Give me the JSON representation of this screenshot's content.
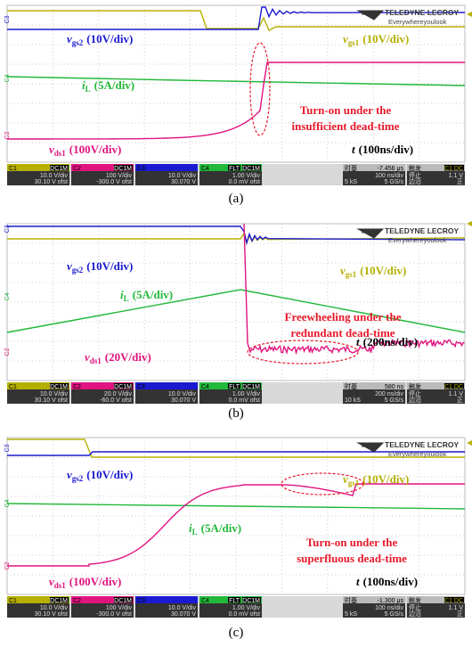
{
  "logo": {
    "brand": "TELEDYNE LECROY",
    "tagline": "Everywhereyoulook"
  },
  "panels": [
    {
      "caption": "(a)",
      "markers": [
        "C3",
        "C4",
        "C2"
      ],
      "signals": [
        {
          "symbol": "v",
          "sub": "gs2",
          "scale": "(10V/div)"
        },
        {
          "symbol": "v",
          "sub": "gs1",
          "scale": "(10V/div)"
        },
        {
          "symbol": "i",
          "sub": "L",
          "scale": "(5A/div)"
        },
        {
          "symbol": "v",
          "sub": "ds1",
          "scale": "(100V/div)"
        }
      ],
      "annotation": [
        "Turn-on under the",
        "insufficient dead-time"
      ],
      "time": {
        "symbol": "t",
        "scale": "(100ns/div)"
      },
      "channels": [
        {
          "name": "C1",
          "coupling": "DC1M",
          "vdiv": "10.0 V/div",
          "offset": "30.10 V ofst"
        },
        {
          "name": "C2",
          "coupling": "DC1M",
          "vdiv": "100 V/div",
          "offset": "-300.0 V ofst"
        },
        {
          "name": "C3",
          "vdiv": "10.0 V/div",
          "offset": "30.070 V"
        },
        {
          "name": "C4",
          "bw": "FLT",
          "coupling": "DC1M",
          "vdiv": "1.00 V/div",
          "offset": "0.0 mV ofst"
        }
      ],
      "timebase": {
        "label": "时基",
        "delay": "-7.456 μs",
        "rate": "100 ns/div",
        "samples": "5 kS",
        "srate": "5 GS/s"
      },
      "trigger": {
        "label": "触发",
        "source": "C1 DC",
        "mode": "停止",
        "level": "1.1 V",
        "type": "边沿",
        "slope": "正"
      }
    },
    {
      "caption": "(b)",
      "markers": [
        "C3",
        "C4",
        "C2"
      ],
      "signals": [
        {
          "symbol": "v",
          "sub": "gs2",
          "scale": "(10V/div)"
        },
        {
          "symbol": "v",
          "sub": "gs1",
          "scale": "(10V/div)"
        },
        {
          "symbol": "i",
          "sub": "L",
          "scale": "(5A/div)"
        },
        {
          "symbol": "v",
          "sub": "ds1",
          "scale": "(20V/div)"
        }
      ],
      "annotation": [
        "Freewheeling under the",
        "redundant dead-time"
      ],
      "time": {
        "symbol": "t",
        "scale": "(200ns/div)"
      },
      "channels": [
        {
          "name": "C1",
          "coupling": "DC1M",
          "vdiv": "10.0 V/div",
          "offset": "30.10 V ofst"
        },
        {
          "name": "C2",
          "coupling": "DC1M",
          "vdiv": "20.0 V/div",
          "offset": "-60.0 V ofst"
        },
        {
          "name": "C3",
          "vdiv": "10.0 V/div",
          "offset": "30.070 V"
        },
        {
          "name": "C4",
          "bw": "FLT",
          "coupling": "DC1M",
          "vdiv": "1.00 V/div",
          "offset": "0.0 mV ofst"
        }
      ],
      "timebase": {
        "label": "时基",
        "delay": "580 ns",
        "rate": "200 ns/div",
        "samples": "10 kS",
        "srate": "5 GS/s"
      },
      "trigger": {
        "label": "触发",
        "source": "C1 DC",
        "mode": "停止",
        "level": "1.1 V",
        "type": "边沿",
        "slope": "正"
      }
    },
    {
      "caption": "(c)",
      "markers": [
        "C3",
        "C4",
        "C2"
      ],
      "signals": [
        {
          "symbol": "v",
          "sub": "gs2",
          "scale": "(10V/div)"
        },
        {
          "symbol": "v",
          "sub": "gs1",
          "scale": "(10V/div)"
        },
        {
          "symbol": "i",
          "sub": "L",
          "scale": "(5A/div)"
        },
        {
          "symbol": "v",
          "sub": "ds1",
          "scale": "(100V/div)"
        }
      ],
      "annotation": [
        "Turn-on under the",
        "superfluous dead-time"
      ],
      "time": {
        "symbol": "t",
        "scale": "(100ns/div)"
      },
      "channels": [
        {
          "name": "C1",
          "coupling": "DC1M",
          "vdiv": "10.0 V/div",
          "offset": "30.10 V ofst"
        },
        {
          "name": "C2",
          "coupling": "DC1M",
          "vdiv": "100 V/div",
          "offset": "-300.0 V ofst"
        },
        {
          "name": "C3",
          "vdiv": "10.0 V/div",
          "offset": "30.070 V"
        },
        {
          "name": "C4",
          "bw": "FLT",
          "coupling": "DC1M",
          "vdiv": "1.00 V/div",
          "offset": "0.0 mV ofst"
        }
      ],
      "timebase": {
        "label": "时基",
        "delay": "-1.300 μs",
        "rate": "100 ns/div",
        "samples": "5 kS",
        "srate": "5 GS/s"
      },
      "trigger": {
        "label": "触发",
        "source": "C1 DC",
        "mode": "停止",
        "level": "1.1 V",
        "type": "边沿",
        "slope": "正"
      }
    }
  ]
}
